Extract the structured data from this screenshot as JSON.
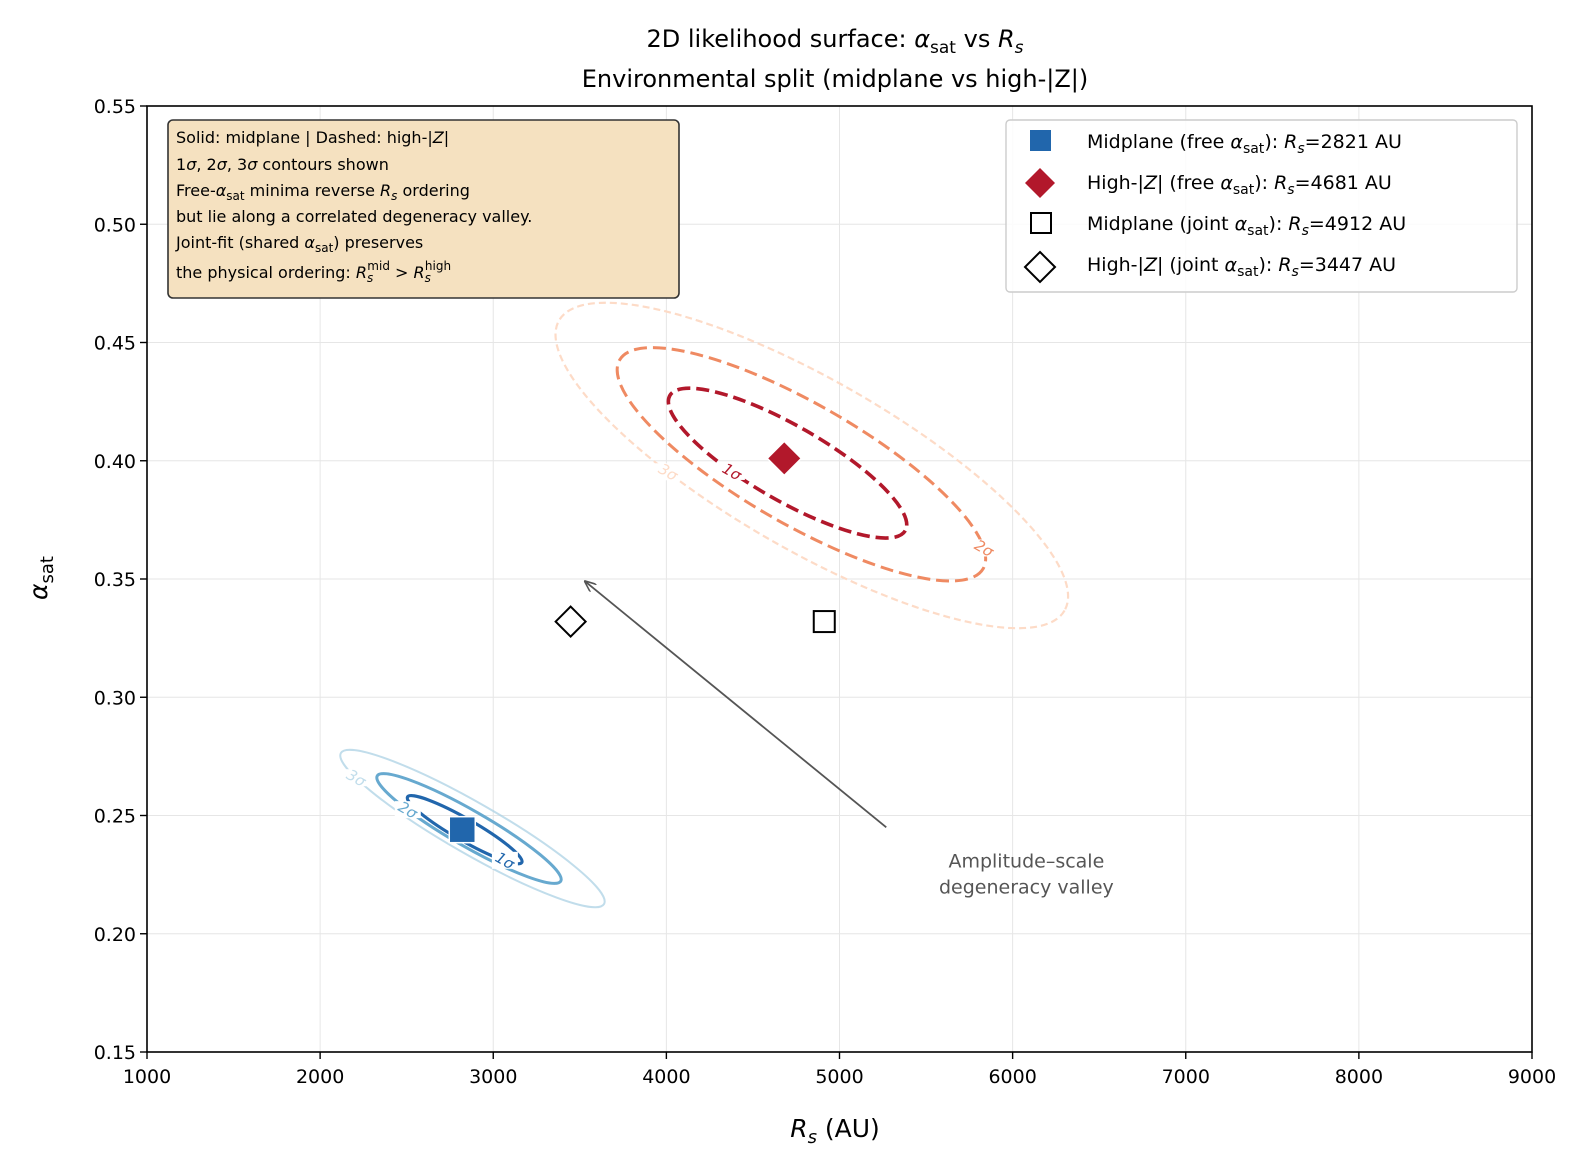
{
  "chart_data": {
    "type": "scatter",
    "title_line1": "2D likelihood surface: αsat vs Rs",
    "title_line2": "Environmental split (midplane vs high-|Z|)",
    "xlabel": "Rs (AU)",
    "ylabel": "αsat",
    "xlim": [
      1000,
      9000
    ],
    "ylim": [
      0.15,
      0.55
    ],
    "xticks": [
      1000,
      2000,
      3000,
      4000,
      5000,
      6000,
      7000,
      8000,
      9000
    ],
    "yticks": [
      0.15,
      0.2,
      0.25,
      0.3,
      0.35,
      0.4,
      0.45,
      0.5,
      0.55
    ],
    "xtick_labels": [
      "1000",
      "2000",
      "3000",
      "4000",
      "5000",
      "6000",
      "7000",
      "8000",
      "9000"
    ],
    "ytick_labels": [
      "0.15",
      "0.20",
      "0.25",
      "0.30",
      "0.35",
      "0.40",
      "0.45",
      "0.50",
      "0.55"
    ],
    "grid": true,
    "legend_position": "top-right",
    "points": [
      {
        "name": "Midplane (free αsat): Rs=2821 AU",
        "x": 2821,
        "y": 0.244,
        "marker": "square",
        "filled": true,
        "color": "#2166ac"
      },
      {
        "name": "High-|Z| (free αsat): Rs=4681 AU",
        "x": 4681,
        "y": 0.401,
        "marker": "diamond",
        "filled": true,
        "color": "#b2182b"
      },
      {
        "name": "Midplane (joint αsat): Rs=4912 AU",
        "x": 4912,
        "y": 0.332,
        "marker": "square",
        "filled": false,
        "color": "#000000"
      },
      {
        "name": "High-|Z| (joint αsat): Rs=3447 AU",
        "x": 3447,
        "y": 0.332,
        "marker": "diamond",
        "filled": false,
        "color": "#000000"
      }
    ],
    "contours": [
      {
        "group": "midplane",
        "level": "1σ",
        "label": "1σ",
        "style": "solid",
        "color": "#2166ac",
        "cx": 2835,
        "cy": 0.244,
        "a": 330,
        "b": 0.0046,
        "width": 3.2,
        "opacity": 1
      },
      {
        "group": "midplane",
        "level": "2σ",
        "label": "2σ",
        "style": "solid",
        "color": "#67a9cf",
        "cx": 2860,
        "cy": 0.2445,
        "a": 530,
        "b": 0.0076,
        "width": 3.0,
        "opacity": 1
      },
      {
        "group": "midplane",
        "level": "3σ",
        "label": "3σ",
        "style": "solid",
        "color": "#a6cee3",
        "cx": 2880,
        "cy": 0.2445,
        "a": 760,
        "b": 0.0108,
        "width": 2.0,
        "opacity": 0.7
      },
      {
        "group": "high-z",
        "level": "1σ",
        "label": "1σ",
        "style": "dashed",
        "color": "#b2182b",
        "cx": 4700,
        "cy": 0.399,
        "a": 680,
        "b": 0.0158,
        "width": 3.6,
        "opacity": 1
      },
      {
        "group": "high-z",
        "level": "2σ",
        "label": "2σ",
        "style": "dashed",
        "color": "#ef8a62",
        "cx": 4780,
        "cy": 0.3985,
        "a": 1050,
        "b": 0.0255,
        "width": 3.0,
        "opacity": 1
      },
      {
        "group": "high-z",
        "level": "3σ",
        "label": "3σ",
        "style": "dashed",
        "color": "#fddbc7",
        "cx": 4840,
        "cy": 0.398,
        "a": 1460,
        "b": 0.036,
        "width": 2.2,
        "opacity": 1
      }
    ],
    "info_box": [
      "Solid: midplane  |  Dashed: high-|Z|",
      "1σ, 2σ, 3σ contours shown",
      "Free-αsat minima reverse Rs ordering",
      "but lie along a correlated degeneracy valley.",
      "Joint-fit (shared αsat) preserves",
      "the physical ordering: Rs^mid > Rs^high"
    ],
    "annotation": {
      "lines": [
        "Amplitude–scale",
        "degeneracy valley"
      ],
      "text_x": 6530,
      "text_y": 0.228,
      "arrow_from_x": 5270,
      "arrow_from_y": 0.245,
      "arrow_to_x": 3530,
      "arrow_to_y": 0.349
    }
  }
}
